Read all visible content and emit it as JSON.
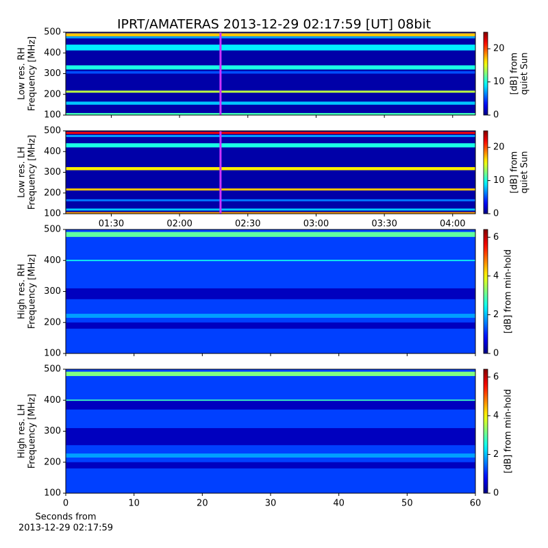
{
  "title": "IPRT/AMATERAS 2013-12-29 02:17:59 [UT]   08bit",
  "chart_data": [
    {
      "type": "spectrogram",
      "ylabel": [
        "Low res. RH",
        "Frequency [MHz]"
      ],
      "ylim": [
        100,
        500
      ],
      "yticks": [
        100,
        200,
        300,
        400,
        500
      ],
      "xlim": [
        "01:10",
        "04:10"
      ],
      "sharex": 1,
      "marker_time": "02:18",
      "marker_color": "#cc33ff",
      "clabel": [
        "[dB] from",
        "quiet Sun"
      ],
      "clim": [
        0,
        25
      ],
      "cticks": [
        0,
        10,
        20
      ],
      "bands": [
        {
          "freq": [
            100,
            500
          ],
          "value": 1
        },
        {
          "freq": [
            480,
            495
          ],
          "value": 17
        },
        {
          "freq": [
            470,
            480
          ],
          "value": 7
        },
        {
          "freq": [
            412,
            440
          ],
          "value": 9
        },
        {
          "freq": [
            320,
            340
          ],
          "value": 10
        },
        {
          "freq": [
            300,
            312
          ],
          "value": 5
        },
        {
          "freq": [
            208,
            218
          ],
          "value": 14
        },
        {
          "freq": [
            150,
            165
          ],
          "value": 8
        },
        {
          "freq": [
            100,
            110
          ],
          "value": 11
        }
      ]
    },
    {
      "type": "spectrogram",
      "ylabel": [
        "Low res. LH",
        "Frequency [MHz]"
      ],
      "ylim": [
        100,
        500
      ],
      "yticks": [
        100,
        200,
        300,
        400,
        500
      ],
      "xlim": [
        "01:10",
        "04:10"
      ],
      "xticks": [
        "01:30",
        "02:00",
        "02:30",
        "03:00",
        "03:30",
        "04:00"
      ],
      "marker_time": "02:18",
      "marker_color": "#cc33ff",
      "clabel": [
        "[dB] from",
        "quiet Sun"
      ],
      "clim": [
        0,
        25
      ],
      "cticks": [
        0,
        10,
        20
      ],
      "bands": [
        {
          "freq": [
            100,
            500
          ],
          "value": 1
        },
        {
          "freq": [
            485,
            495
          ],
          "value": 22
        },
        {
          "freq": [
            470,
            480
          ],
          "value": 7
        },
        {
          "freq": [
            420,
            440
          ],
          "value": 10
        },
        {
          "freq": [
            310,
            325
          ],
          "value": 16
        },
        {
          "freq": [
            212,
            222
          ],
          "value": 17
        },
        {
          "freq": [
            160,
            170
          ],
          "value": 6
        },
        {
          "freq": [
            115,
            125
          ],
          "value": 8
        },
        {
          "freq": [
            100,
            108
          ],
          "value": 18
        }
      ]
    },
    {
      "type": "spectrogram",
      "ylabel": [
        "High res. RH",
        "Frequency [MHz]"
      ],
      "ylim": [
        100,
        500
      ],
      "yticks": [
        100,
        200,
        300,
        400,
        500
      ],
      "xlim": [
        0,
        60
      ],
      "sharex": 3,
      "clabel": [
        "[dB] from min-hold"
      ],
      "clim": [
        0,
        6.4
      ],
      "cticks": [
        0,
        2,
        4,
        6
      ],
      "bands": [
        {
          "freq": [
            100,
            500
          ],
          "value": 1.2
        },
        {
          "freq": [
            476,
            492
          ],
          "value": 3
        },
        {
          "freq": [
            398,
            402
          ],
          "value": 2.5
        },
        {
          "freq": [
            275,
            310
          ],
          "value": 0.4
        },
        {
          "freq": [
            180,
            200
          ],
          "value": 0.4
        },
        {
          "freq": [
            215,
            228
          ],
          "value": 1.8
        }
      ]
    },
    {
      "type": "spectrogram",
      "ylabel": [
        "High res. LH",
        "Frequency [MHz]"
      ],
      "ylim": [
        100,
        500
      ],
      "yticks": [
        100,
        200,
        300,
        400,
        500
      ],
      "xlim": [
        0,
        60
      ],
      "xticks": [
        0,
        10,
        20,
        30,
        40,
        50,
        60
      ],
      "xlabel": [
        "Seconds from",
        "2013-12-29 02:17:59"
      ],
      "clabel": [
        "[dB] from min-hold"
      ],
      "clim": [
        0,
        6.4
      ],
      "cticks": [
        0,
        2,
        4,
        6
      ],
      "bands": [
        {
          "freq": [
            100,
            500
          ],
          "value": 1.2
        },
        {
          "freq": [
            478,
            492
          ],
          "value": 3.2
        },
        {
          "freq": [
            370,
            400
          ],
          "value": 0.4
        },
        {
          "freq": [
            398,
            402
          ],
          "value": 2.8
        },
        {
          "freq": [
            255,
            310
          ],
          "value": 0.4
        },
        {
          "freq": [
            180,
            200
          ],
          "value": 0.4
        },
        {
          "freq": [
            215,
            228
          ],
          "value": 1.8
        }
      ]
    }
  ]
}
